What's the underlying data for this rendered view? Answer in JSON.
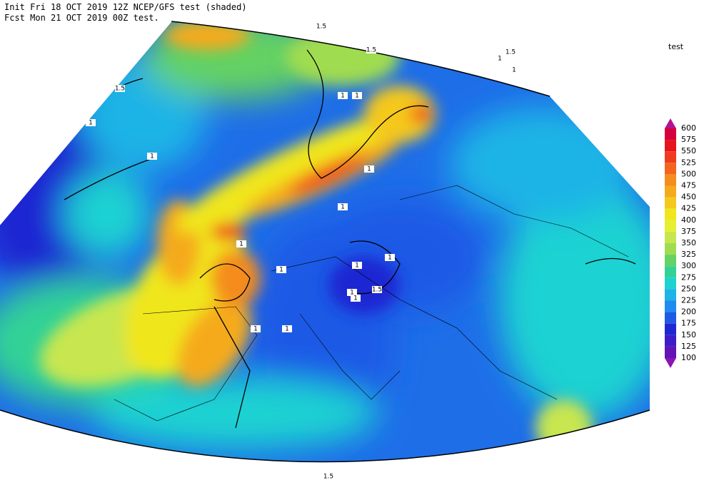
{
  "header": {
    "line1": "Init  Fri 18 OCT 2019 12Z   NCEP/GFS test (shaded)",
    "line2": "Fcst Mon 21 OCT 2019 00Z  test."
  },
  "legend": {
    "title": "test",
    "levels": [
      600,
      575,
      550,
      525,
      500,
      475,
      450,
      425,
      400,
      375,
      350,
      325,
      300,
      275,
      250,
      225,
      200,
      175,
      150,
      125,
      100
    ],
    "colors": [
      "#b4148c",
      "#d7003c",
      "#e6141e",
      "#f03c1e",
      "#f5641e",
      "#f58c1e",
      "#f5aa1e",
      "#f5c81e",
      "#f0e61e",
      "#e6f032",
      "#c8e650",
      "#a0dc50",
      "#64d264",
      "#32d296",
      "#1ed2d2",
      "#1eb4e6",
      "#1e8cf0",
      "#1e5ae6",
      "#1e28d2",
      "#3c1ec8",
      "#6414b4",
      "#8c14b4"
    ]
  },
  "contour_labels": [
    "1.5",
    "1.5",
    "1.5",
    "1",
    "1",
    "1.5",
    "1",
    "1",
    "1",
    "1",
    "1",
    "1",
    "1",
    "1",
    "1",
    "1",
    "1.5",
    "1",
    "1",
    "1",
    "1",
    "1.5"
  ]
}
